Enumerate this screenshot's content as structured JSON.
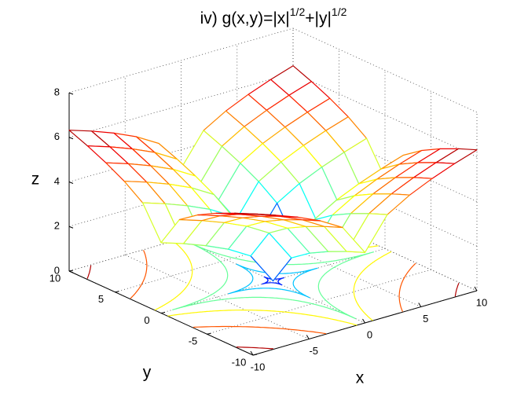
{
  "chart_data": {
    "type": "surface",
    "title": [
      "iv)  g(x,y)=|x|",
      "1/2",
      "+|y|",
      "1/2"
    ],
    "xlabel": "x",
    "ylabel": "y",
    "zlabel": "z",
    "x": [
      -10,
      -8,
      -6,
      -4,
      -2,
      0,
      2,
      4,
      6,
      8,
      10
    ],
    "y": [
      -10,
      -8,
      -6,
      -4,
      -2,
      0,
      2,
      4,
      6,
      8,
      10
    ],
    "z": [
      [
        6.32,
        5.99,
        5.61,
        5.16,
        4.57,
        3.16,
        4.57,
        5.16,
        5.61,
        5.99,
        6.32
      ],
      [
        5.99,
        5.66,
        5.28,
        4.83,
        4.24,
        2.83,
        4.24,
        4.83,
        5.28,
        5.66,
        5.99
      ],
      [
        5.61,
        5.28,
        4.9,
        4.45,
        3.86,
        2.45,
        3.86,
        4.45,
        4.9,
        5.28,
        5.61
      ],
      [
        5.16,
        4.83,
        4.45,
        4,
        3.41,
        2,
        3.41,
        4,
        4.45,
        4.83,
        5.16
      ],
      [
        4.57,
        4.24,
        3.86,
        3.41,
        2.82,
        1.41,
        2.82,
        3.41,
        3.86,
        4.24,
        4.57
      ],
      [
        3.16,
        2.83,
        2.45,
        2,
        1.41,
        0,
        1.41,
        2,
        2.45,
        2.83,
        3.16
      ],
      [
        4.57,
        4.24,
        3.86,
        3.41,
        2.82,
        1.41,
        2.82,
        3.41,
        3.86,
        4.24,
        4.57
      ],
      [
        5.16,
        4.83,
        4.45,
        4,
        3.41,
        2,
        3.41,
        4,
        4.45,
        4.83,
        5.16
      ],
      [
        5.61,
        5.28,
        4.9,
        4.45,
        3.86,
        2.45,
        3.86,
        4.45,
        4.9,
        5.28,
        5.61
      ],
      [
        5.99,
        5.66,
        5.28,
        4.83,
        4.24,
        2.83,
        4.24,
        4.83,
        5.28,
        5.66,
        5.99
      ],
      [
        6.32,
        5.99,
        5.61,
        5.16,
        4.57,
        3.16,
        4.57,
        5.16,
        5.61,
        5.99,
        6.32
      ]
    ],
    "contour_levels": [
      1,
      2,
      3,
      4,
      5,
      6
    ],
    "colormap": "jet",
    "xlim": [
      -10,
      10
    ],
    "ylim": [
      -10,
      10
    ],
    "zlim": [
      0,
      8
    ],
    "xticks": [
      -10,
      -5,
      0,
      5,
      10
    ],
    "yticks": [
      -10,
      -5,
      0,
      5,
      10
    ],
    "zticks": [
      0,
      2,
      4,
      6,
      8
    ],
    "grid": true
  }
}
